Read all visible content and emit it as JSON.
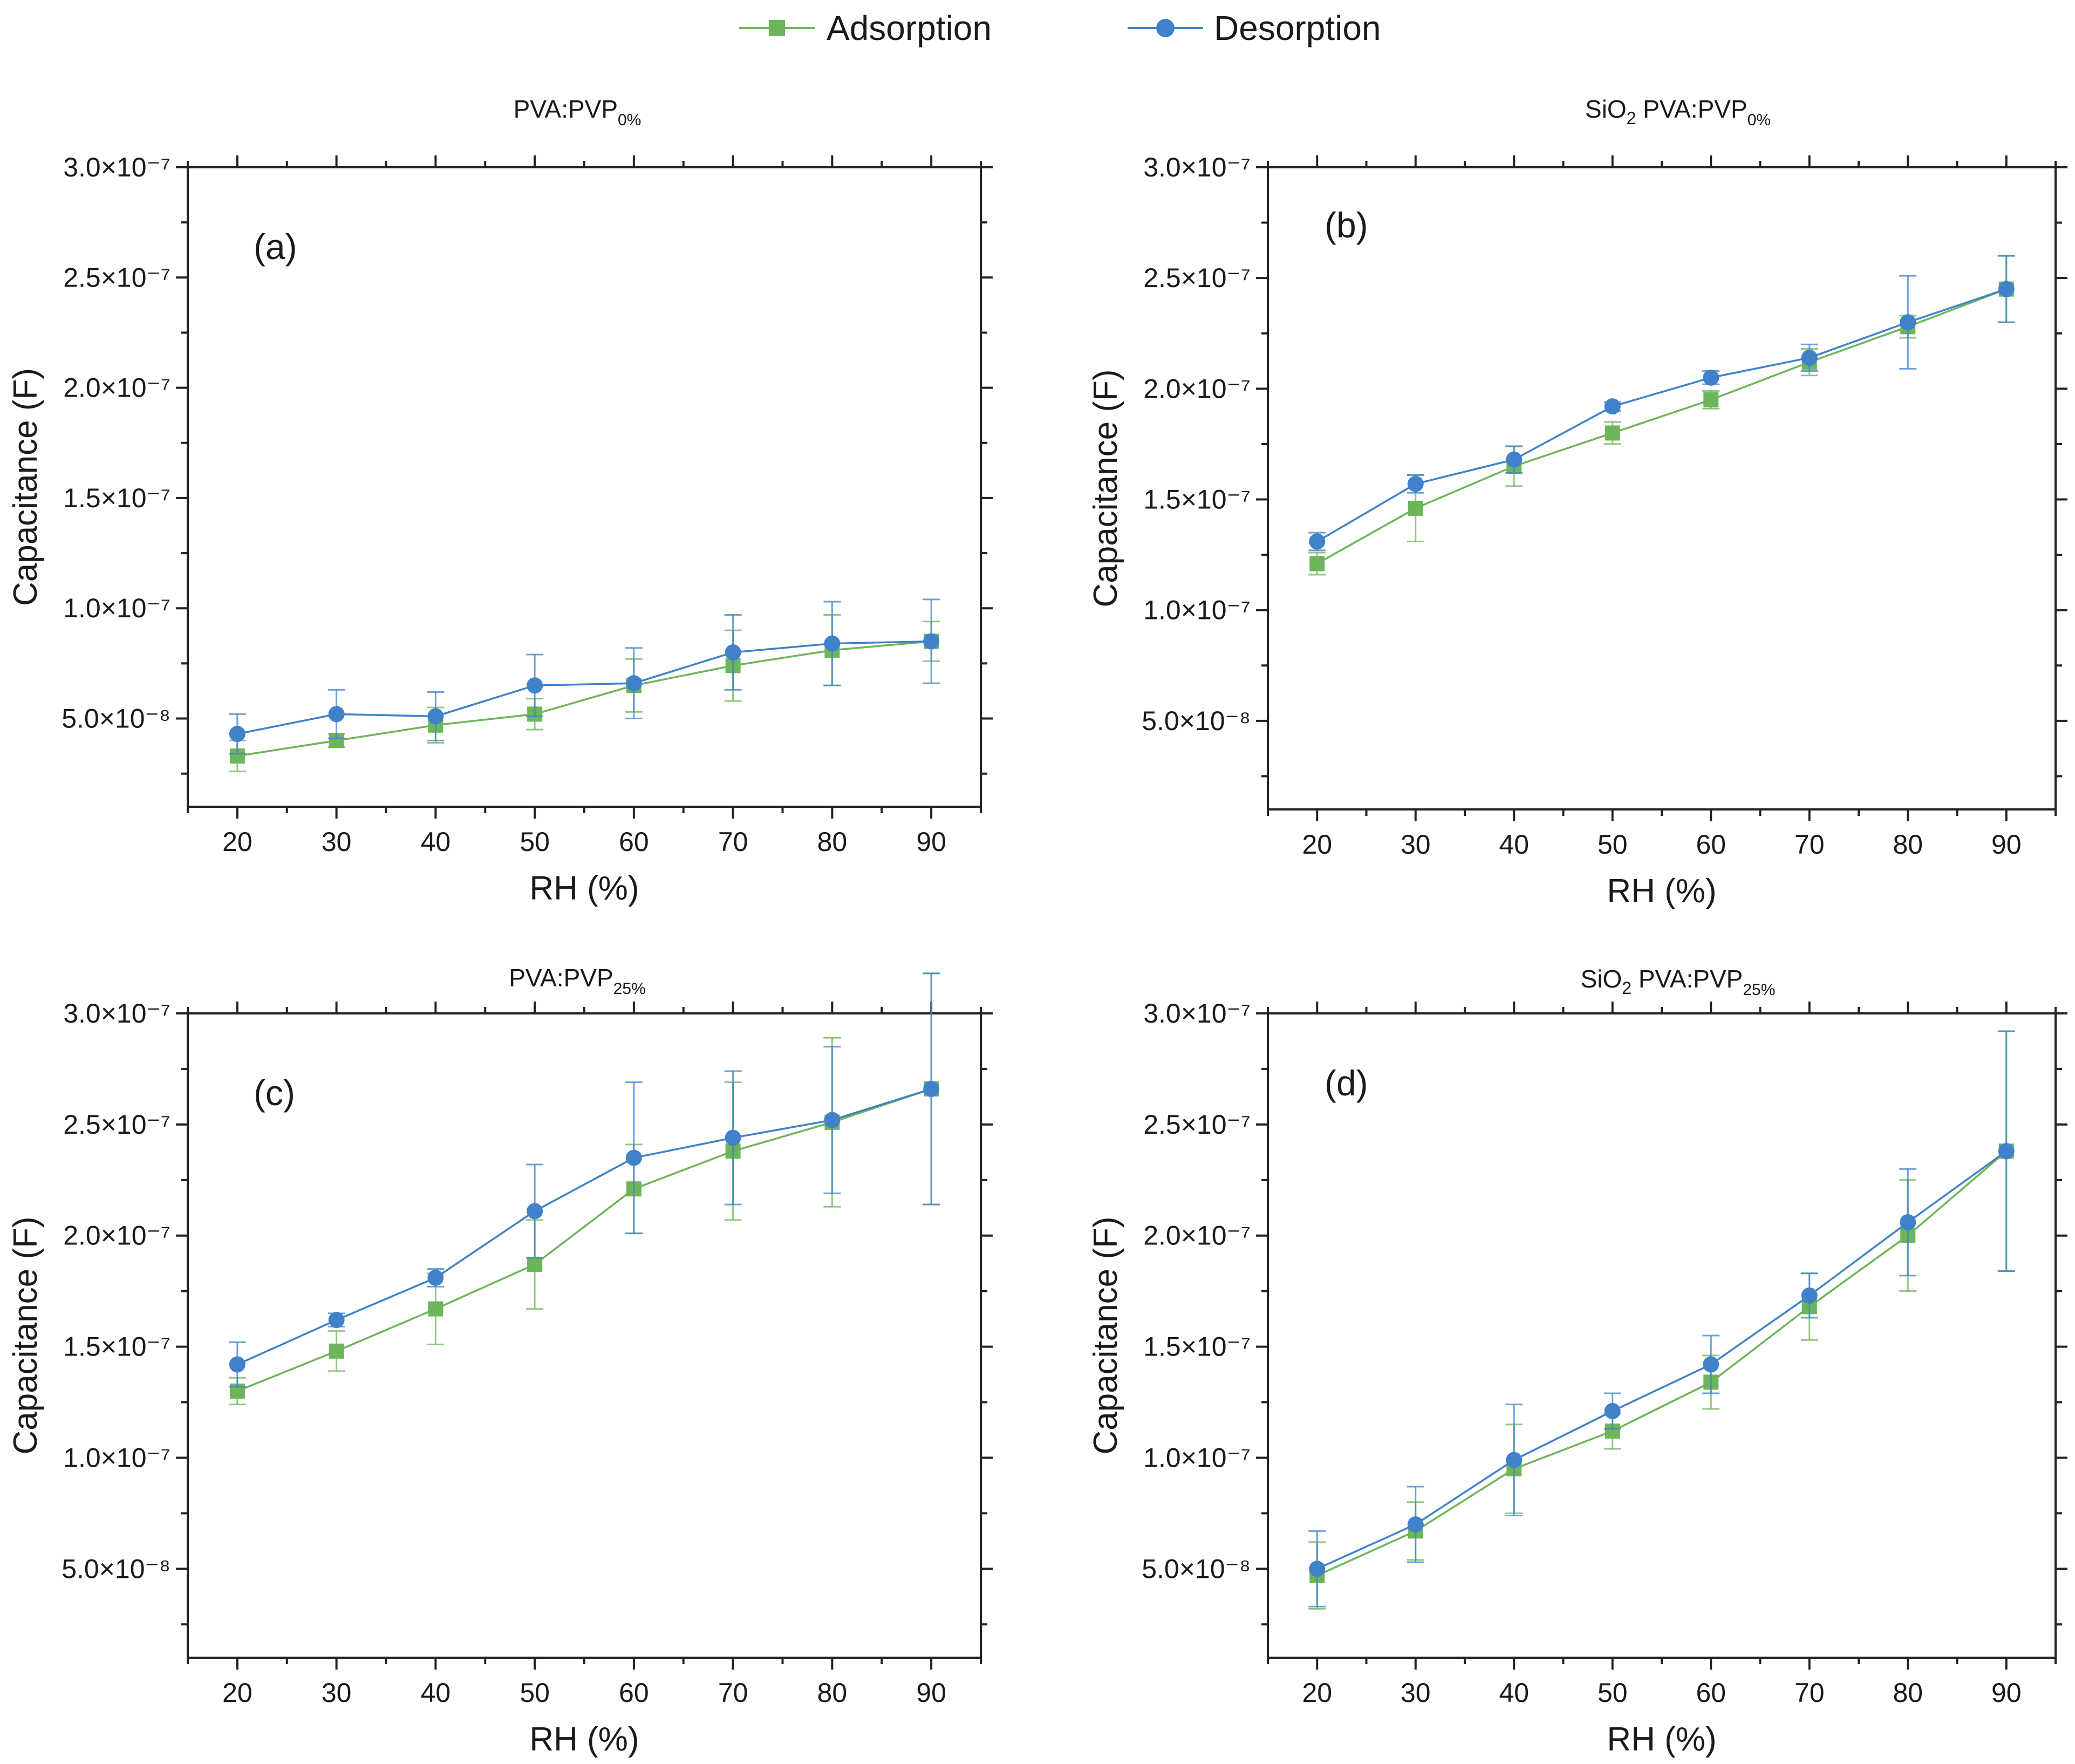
{
  "colors": {
    "adsorption": "#6db55a",
    "desorption": "#3f82c9",
    "axis": "#222222"
  },
  "legend": {
    "items": [
      {
        "label": "Adsorption",
        "marker": "square",
        "color": "#6db55a"
      },
      {
        "label": "Desorption",
        "marker": "circle",
        "color": "#3f82c9"
      }
    ]
  },
  "chart_data": [
    {
      "type": "line",
      "panel": "(a)",
      "title": "PVA:PVP",
      "title_prefix": "",
      "title_subscript": "0%",
      "xlabel": "RH (%)",
      "ylabel": "Capacitance (F)",
      "x": [
        20,
        30,
        40,
        50,
        60,
        70,
        80,
        90
      ],
      "xlim": [
        15,
        95
      ],
      "ylim": [
        1e-08,
        3e-07
      ],
      "yticks": [
        5e-08,
        1e-07,
        1.5e-07,
        2e-07,
        2.5e-07,
        3e-07
      ],
      "ytick_labels": [
        "5.0×10⁻⁸",
        "1.0×10⁻⁷",
        "1.5×10⁻⁷",
        "2.0×10⁻⁷",
        "2.5×10⁻⁷",
        "3.0×10⁻⁷"
      ],
      "series": [
        {
          "name": "Adsorption",
          "values": [
            3.3e-08,
            4e-08,
            4.7e-08,
            5.2e-08,
            6.5e-08,
            7.4e-08,
            8.1e-08,
            8.5e-08
          ],
          "errors": [
            7e-09,
            3e-09,
            8e-09,
            7e-09,
            1.2e-08,
            1.6e-08,
            1.6e-08,
            9e-09
          ]
        },
        {
          "name": "Desorption",
          "values": [
            4.3e-08,
            5.2e-08,
            5.1e-08,
            6.5e-08,
            6.6e-08,
            8e-08,
            8.4e-08,
            8.5e-08
          ],
          "errors": [
            9e-09,
            1.1e-08,
            1.1e-08,
            1.4e-08,
            1.6e-08,
            1.7e-08,
            1.9e-08,
            1.9e-08
          ]
        }
      ]
    },
    {
      "type": "line",
      "panel": "(b)",
      "title": "PVA:PVP",
      "title_prefix": "SiO",
      "title_prefix_sub": "2",
      "title_subscript": "0%",
      "xlabel": "RH (%)",
      "ylabel": "Capacitance (F)",
      "x": [
        20,
        30,
        40,
        50,
        60,
        70,
        80,
        90
      ],
      "xlim": [
        15,
        95
      ],
      "ylim": [
        1e-08,
        3e-07
      ],
      "yticks": [
        5e-08,
        1e-07,
        1.5e-07,
        2e-07,
        2.5e-07,
        3e-07
      ],
      "ytick_labels": [
        "5.0×10⁻⁸",
        "1.0×10⁻⁷",
        "1.5×10⁻⁷",
        "2.0×10⁻⁷",
        "2.5×10⁻⁷",
        "3.0×10⁻⁷"
      ],
      "series": [
        {
          "name": "Adsorption",
          "values": [
            1.21e-07,
            1.46e-07,
            1.65e-07,
            1.8e-07,
            1.95e-07,
            2.12e-07,
            2.28e-07,
            2.45e-07
          ],
          "errors": [
            5e-09,
            1.5e-08,
            9e-09,
            5e-09,
            4e-09,
            6e-09,
            5e-09,
            1.5e-08
          ]
        },
        {
          "name": "Desorption",
          "values": [
            1.31e-07,
            1.57e-07,
            1.68e-07,
            1.92e-07,
            2.05e-07,
            2.14e-07,
            2.3e-07,
            2.45e-07
          ],
          "errors": [
            4e-09,
            4e-09,
            6e-09,
            2e-09,
            3e-09,
            6e-09,
            2.1e-08,
            1.5e-08
          ]
        }
      ]
    },
    {
      "type": "line",
      "panel": "(c)",
      "title": "PVA:PVP",
      "title_prefix": "",
      "title_subscript": "25%",
      "xlabel": "RH (%)",
      "ylabel": "Capacitance (F)",
      "x": [
        20,
        30,
        40,
        50,
        60,
        70,
        80,
        90
      ],
      "xlim": [
        15,
        95
      ],
      "ylim": [
        1e-08,
        3e-07
      ],
      "yticks": [
        5e-08,
        1e-07,
        1.5e-07,
        2e-07,
        2.5e-07,
        3e-07
      ],
      "ytick_labels": [
        "5.0×10⁻⁸",
        "1.0×10⁻⁷",
        "1.5×10⁻⁷",
        "2.0×10⁻⁷",
        "2.5×10⁻⁷",
        "3.0×10⁻⁷"
      ],
      "series": [
        {
          "name": "Adsorption",
          "values": [
            1.3e-07,
            1.48e-07,
            1.67e-07,
            1.87e-07,
            2.21e-07,
            2.38e-07,
            2.51e-07,
            2.66e-07
          ],
          "errors": [
            6e-09,
            9e-09,
            1.6e-08,
            2e-08,
            2e-08,
            3.1e-08,
            3.8e-08,
            5.2e-08
          ]
        },
        {
          "name": "Desorption",
          "values": [
            1.42e-07,
            1.62e-07,
            1.81e-07,
            2.11e-07,
            2.35e-07,
            2.44e-07,
            2.52e-07,
            2.66e-07
          ],
          "errors": [
            1e-08,
            3e-09,
            4e-09,
            2.1e-08,
            3.4e-08,
            3e-08,
            3.3e-08,
            5.2e-08
          ]
        }
      ]
    },
    {
      "type": "line",
      "panel": "(d)",
      "title": "PVA:PVP",
      "title_prefix": "SiO",
      "title_prefix_sub": "2",
      "title_subscript": "25%",
      "xlabel": "RH (%)",
      "ylabel": "Capacitance (F)",
      "x": [
        20,
        30,
        40,
        50,
        60,
        70,
        80,
        90
      ],
      "xlim": [
        15,
        95
      ],
      "ylim": [
        1e-08,
        3e-07
      ],
      "yticks": [
        5e-08,
        1e-07,
        1.5e-07,
        2e-07,
        2.5e-07,
        3e-07
      ],
      "ytick_labels": [
        "5.0×10⁻⁸",
        "1.0×10⁻⁷",
        "1.5×10⁻⁷",
        "2.0×10⁻⁷",
        "2.5×10⁻⁷",
        "3.0×10⁻⁷"
      ],
      "series": [
        {
          "name": "Adsorption",
          "values": [
            4.7e-08,
            6.7e-08,
            9.5e-08,
            1.12e-07,
            1.34e-07,
            1.68e-07,
            2e-07,
            2.38e-07
          ],
          "errors": [
            1.5e-08,
            1.3e-08,
            2e-08,
            8e-09,
            1.2e-08,
            1.5e-08,
            2.5e-08,
            5.4e-08
          ]
        },
        {
          "name": "Desorption",
          "values": [
            5e-08,
            7e-08,
            9.9e-08,
            1.21e-07,
            1.42e-07,
            1.73e-07,
            2.06e-07,
            2.38e-07
          ],
          "errors": [
            1.7e-08,
            1.7e-08,
            2.5e-08,
            8e-09,
            1.3e-08,
            1e-08,
            2.4e-08,
            5.4e-08
          ]
        }
      ]
    }
  ]
}
